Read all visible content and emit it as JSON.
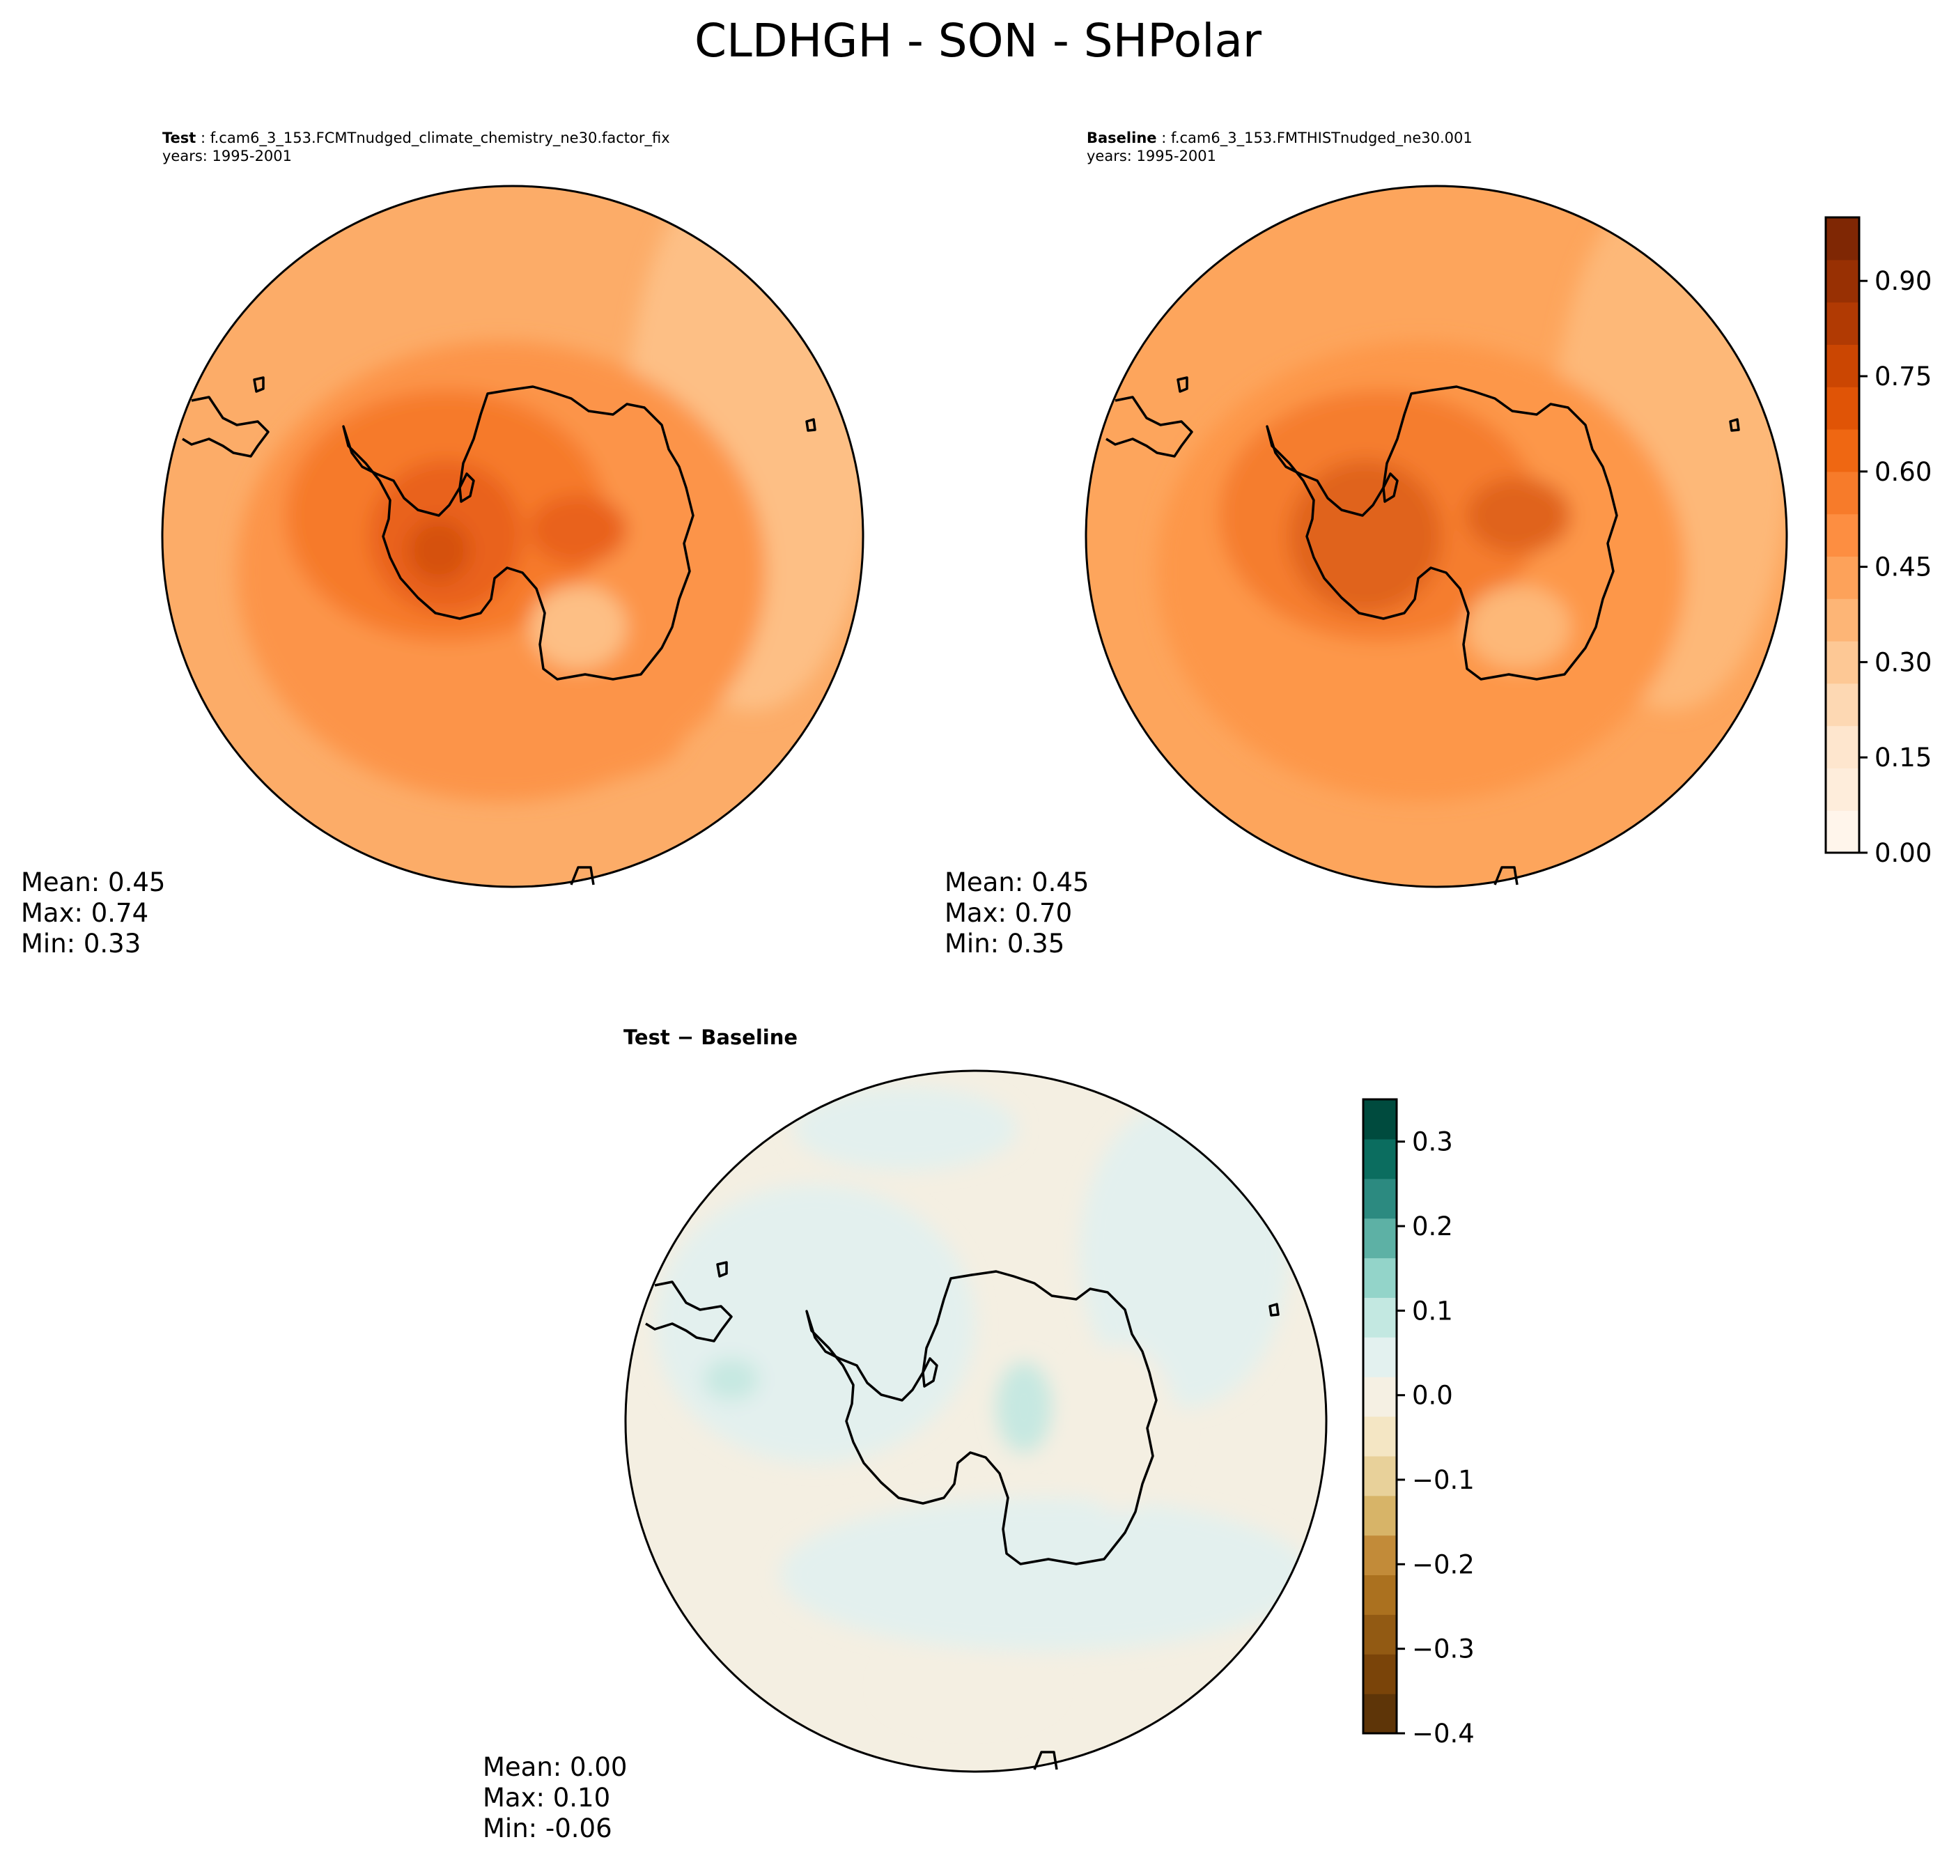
{
  "figure_title": "CLDHGH - SON - SHPolar",
  "panels": {
    "test": {
      "label": "Test",
      "case": "f.cam6_3_153.FCMTnudged_climate_chemistry_ne30.factor_fix",
      "years": "years: 1995-2001",
      "stats": {
        "mean": "Mean:  0.45",
        "max": "Max:  0.74",
        "min": "Min:  0.33"
      }
    },
    "baseline": {
      "label": "Baseline",
      "case": "f.cam6_3_153.FMTHISTnudged_ne30.001",
      "years": "years: 1995-2001",
      "stats": {
        "mean": "Mean:  0.45",
        "max": "Max:  0.70",
        "min": "Min:  0.35"
      }
    },
    "diff": {
      "label": "Test − Baseline",
      "stats": {
        "mean": "Mean:  0.00",
        "max": "Max:  0.10",
        "min": "Min: -0.06"
      }
    }
  },
  "colorbars": {
    "main": {
      "cmap": "Oranges",
      "range": [
        0.0,
        1.0
      ],
      "tick_values": [
        0.0,
        0.15,
        0.3,
        0.45,
        0.6,
        0.75,
        0.9
      ],
      "tick_labels": [
        "0.00",
        "0.15",
        "0.30",
        "0.45",
        "0.60",
        "0.75",
        "0.90"
      ],
      "colors": [
        "#fff5eb",
        "#feeddb",
        "#fee6ce",
        "#fdd8b3",
        "#fdc895",
        "#fdb576",
        "#fda25a",
        "#fd8e41",
        "#f77b2a",
        "#ef6712",
        "#e05406",
        "#cb4602",
        "#b13a03",
        "#983003",
        "#7f2704"
      ]
    },
    "diff": {
      "cmap": "BrBG",
      "range": [
        -0.4,
        0.35
      ],
      "tick_values": [
        -0.4,
        -0.3,
        -0.2,
        -0.1,
        0.0,
        0.1,
        0.2,
        0.3
      ],
      "tick_labels": [
        "−0.4",
        "−0.3",
        "−0.2",
        "−0.1",
        "0.0",
        "0.1",
        "0.2",
        "0.3"
      ],
      "colors": [
        "#5e3508",
        "#7a4409",
        "#925a13",
        "#ab711f",
        "#c28b39",
        "#d7b468",
        "#e8d19a",
        "#f4e6c4",
        "#f5f0e3",
        "#e3f1ef",
        "#c3e8e1",
        "#93d4c9",
        "#5db1a5",
        "#2c8a80",
        "#0b6d5f",
        "#004b3e"
      ]
    }
  },
  "map_colors": {
    "test_bg": "#fcac68",
    "test_mid": "#fc9448",
    "test_high": "#f67a2a",
    "test_core": "#e9621a",
    "test_peak": "#d55109",
    "test_low": "#fdbf85",
    "base_bg": "#fda55c",
    "base_mid": "#fd9748",
    "base_high": "#f57d2d",
    "base_core": "#e0631b",
    "base_low": "#fdb878",
    "diff_bg": "#f4efe2",
    "diff_pos": "#e3f0ee",
    "diff_pos2": "#c6e8e1",
    "diff_neg": "#f3e3c1"
  }
}
